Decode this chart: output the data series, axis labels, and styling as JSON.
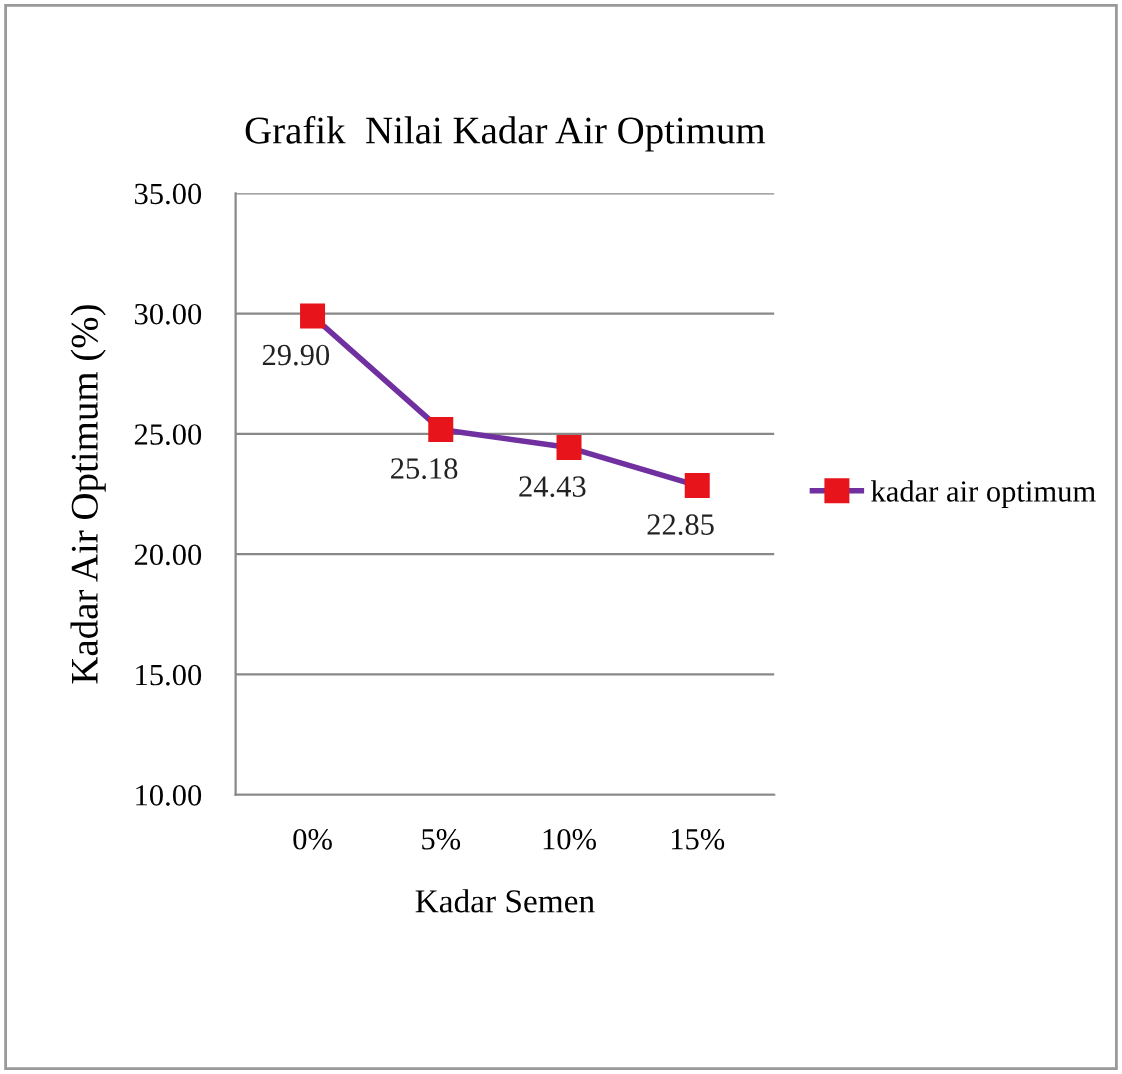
{
  "chart_data": {
    "type": "line",
    "title": "Grafik  Nilai Kadar Air Optimum",
    "xlabel": "Kadar Semen",
    "ylabel": "Kadar Air Optimum (%)",
    "categories": [
      "0%",
      "5%",
      "10%",
      "15%"
    ],
    "series": [
      {
        "name": "kadar air optimum",
        "color": "#7030a0",
        "colors": [
          "#e8141c",
          "#e8141c",
          "#e8141c",
          "#e8141c"
        ],
        "values": [
          29.9,
          25.18,
          24.43,
          22.85
        ],
        "value_labels": [
          "29.90",
          "25.18",
          "24.43",
          "22.85"
        ]
      }
    ],
    "ylim": [
      10,
      35
    ],
    "yticks": [
      {
        "value": 10,
        "label": "10.00"
      },
      {
        "value": 15,
        "label": "15.00"
      },
      {
        "value": 20,
        "label": "20.00"
      },
      {
        "value": 25,
        "label": "25.00"
      },
      {
        "value": 30,
        "label": "30.00"
      },
      {
        "value": 35,
        "label": "35.00"
      }
    ],
    "grid": "y",
    "legend": "right",
    "marker": "square",
    "line_style": "solid"
  }
}
